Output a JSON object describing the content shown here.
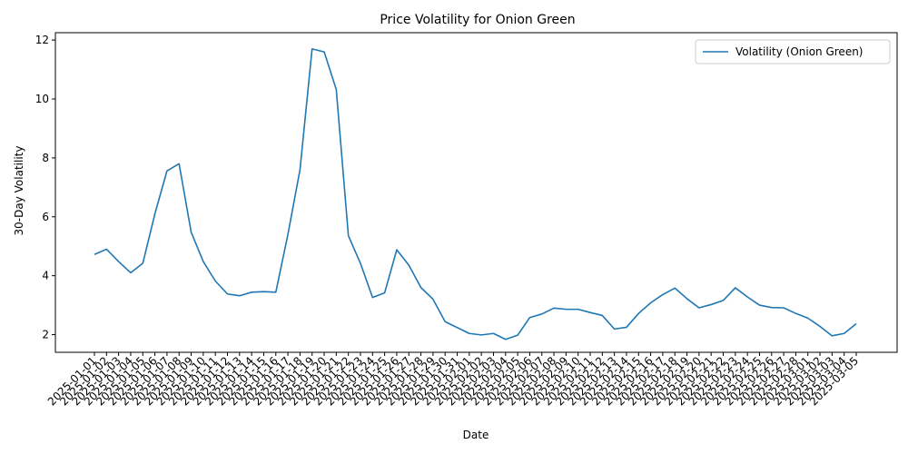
{
  "chart_data": {
    "type": "line",
    "title": "Price Volatility for Onion Green",
    "xlabel": "Date",
    "ylabel": "30-Day Volatility",
    "ylim": [
      1.4,
      12.25
    ],
    "yticks": [
      2,
      4,
      6,
      8,
      10,
      12
    ],
    "grid": false,
    "legend_position": "top-right",
    "series": [
      {
        "name": "Volatility (Onion Green)",
        "color": "#1f77b4",
        "values": [
          4.72,
          4.9,
          4.48,
          4.1,
          4.42,
          6.1,
          7.56,
          7.8,
          5.48,
          4.48,
          3.82,
          3.38,
          3.32,
          3.44,
          3.46,
          3.44,
          5.4,
          7.6,
          11.7,
          11.6,
          10.32,
          5.36,
          4.42,
          3.26,
          3.42,
          4.88,
          4.36,
          3.6,
          3.2,
          2.44,
          2.24,
          2.04,
          1.99,
          2.04,
          1.84,
          1.98,
          2.58,
          2.7,
          2.9,
          2.86,
          2.86,
          2.75,
          2.65,
          2.19,
          2.25,
          2.72,
          3.08,
          3.36,
          3.58,
          3.22,
          2.91,
          3.02,
          3.16,
          3.59,
          3.28,
          3.0,
          2.92,
          2.91,
          2.72,
          2.56,
          2.28,
          1.96,
          2.04,
          2.37
        ]
      }
    ],
    "categories": [
      "2025-01-01",
      "2025-01-02",
      "2025-01-03",
      "2025-01-04",
      "2025-01-05",
      "2025-01-06",
      "2025-01-07",
      "2025-01-08",
      "2025-01-09",
      "2025-01-10",
      "2025-01-11",
      "2025-01-12",
      "2025-01-13",
      "2025-01-14",
      "2025-01-15",
      "2025-01-16",
      "2025-01-17",
      "2025-01-18",
      "2025-01-19",
      "2025-01-20",
      "2025-01-21",
      "2025-01-22",
      "2025-01-23",
      "2025-01-24",
      "2025-01-25",
      "2025-01-26",
      "2025-01-27",
      "2025-01-28",
      "2025-01-29",
      "2025-01-30",
      "2025-01-31",
      "2025-02-01",
      "2025-02-02",
      "2025-02-03",
      "2025-02-04",
      "2025-02-05",
      "2025-02-06",
      "2025-02-07",
      "2025-02-08",
      "2025-02-09",
      "2025-02-10",
      "2025-02-11",
      "2025-02-12",
      "2025-02-13",
      "2025-02-14",
      "2025-02-15",
      "2025-02-16",
      "2025-02-17",
      "2025-02-18",
      "2025-02-19",
      "2025-02-20",
      "2025-02-21",
      "2025-02-22",
      "2025-02-23",
      "2025-02-24",
      "2025-02-25",
      "2025-02-26",
      "2025-02-27",
      "2025-02-28",
      "2025-03-01",
      "2025-03-02",
      "2025-03-03",
      "2025-03-04",
      "2025-03-05"
    ]
  }
}
